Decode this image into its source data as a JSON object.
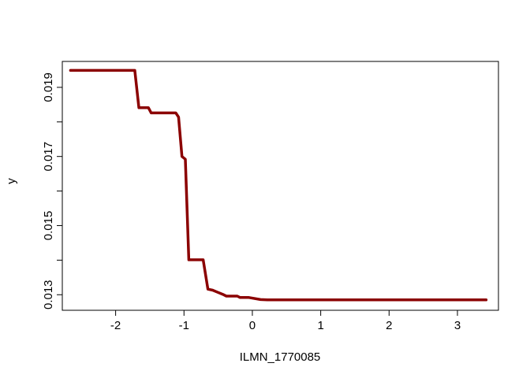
{
  "chart_data": {
    "type": "line",
    "title": "",
    "xlabel": "ILMN_1770085",
    "ylabel": "y",
    "xlim": [
      -2.78,
      3.6
    ],
    "ylim": [
      0.01255,
      0.01975
    ],
    "x_ticks": [
      -2,
      -1,
      0,
      1,
      2,
      3
    ],
    "x_tick_labels": [
      "-2",
      "-1",
      "0",
      "1",
      "2",
      "3"
    ],
    "y_ticks": [
      0.013,
      0.014,
      0.015,
      0.016,
      0.017,
      0.018,
      0.019
    ],
    "y_tick_labels": [
      "0.013",
      "",
      "0.015",
      "",
      "0.017",
      "",
      "0.019"
    ],
    "grid": false,
    "legend": "none",
    "series": [
      {
        "color": "#8b0000",
        "x": [
          -2.66,
          -1.72,
          -1.66,
          -1.52,
          -1.48,
          -1.12,
          -1.08,
          -1.03,
          -0.98,
          -0.93,
          -0.88,
          -0.72,
          -0.65,
          -0.58,
          -0.52,
          -0.42,
          -0.38,
          -0.33,
          -0.28,
          -0.22,
          -0.18,
          -0.12,
          -0.05,
          0.12,
          0.22,
          0.4,
          3.42
        ],
        "y": [
          0.01949,
          0.01949,
          0.01841,
          0.01841,
          0.01826,
          0.01826,
          0.01814,
          0.017,
          0.01692,
          0.01401,
          0.01401,
          0.01401,
          0.01316,
          0.01313,
          0.01308,
          0.013,
          0.01296,
          0.01296,
          0.01296,
          0.01296,
          0.01292,
          0.01292,
          0.01292,
          0.01286,
          0.01285,
          0.01285,
          0.01285
        ]
      }
    ]
  }
}
